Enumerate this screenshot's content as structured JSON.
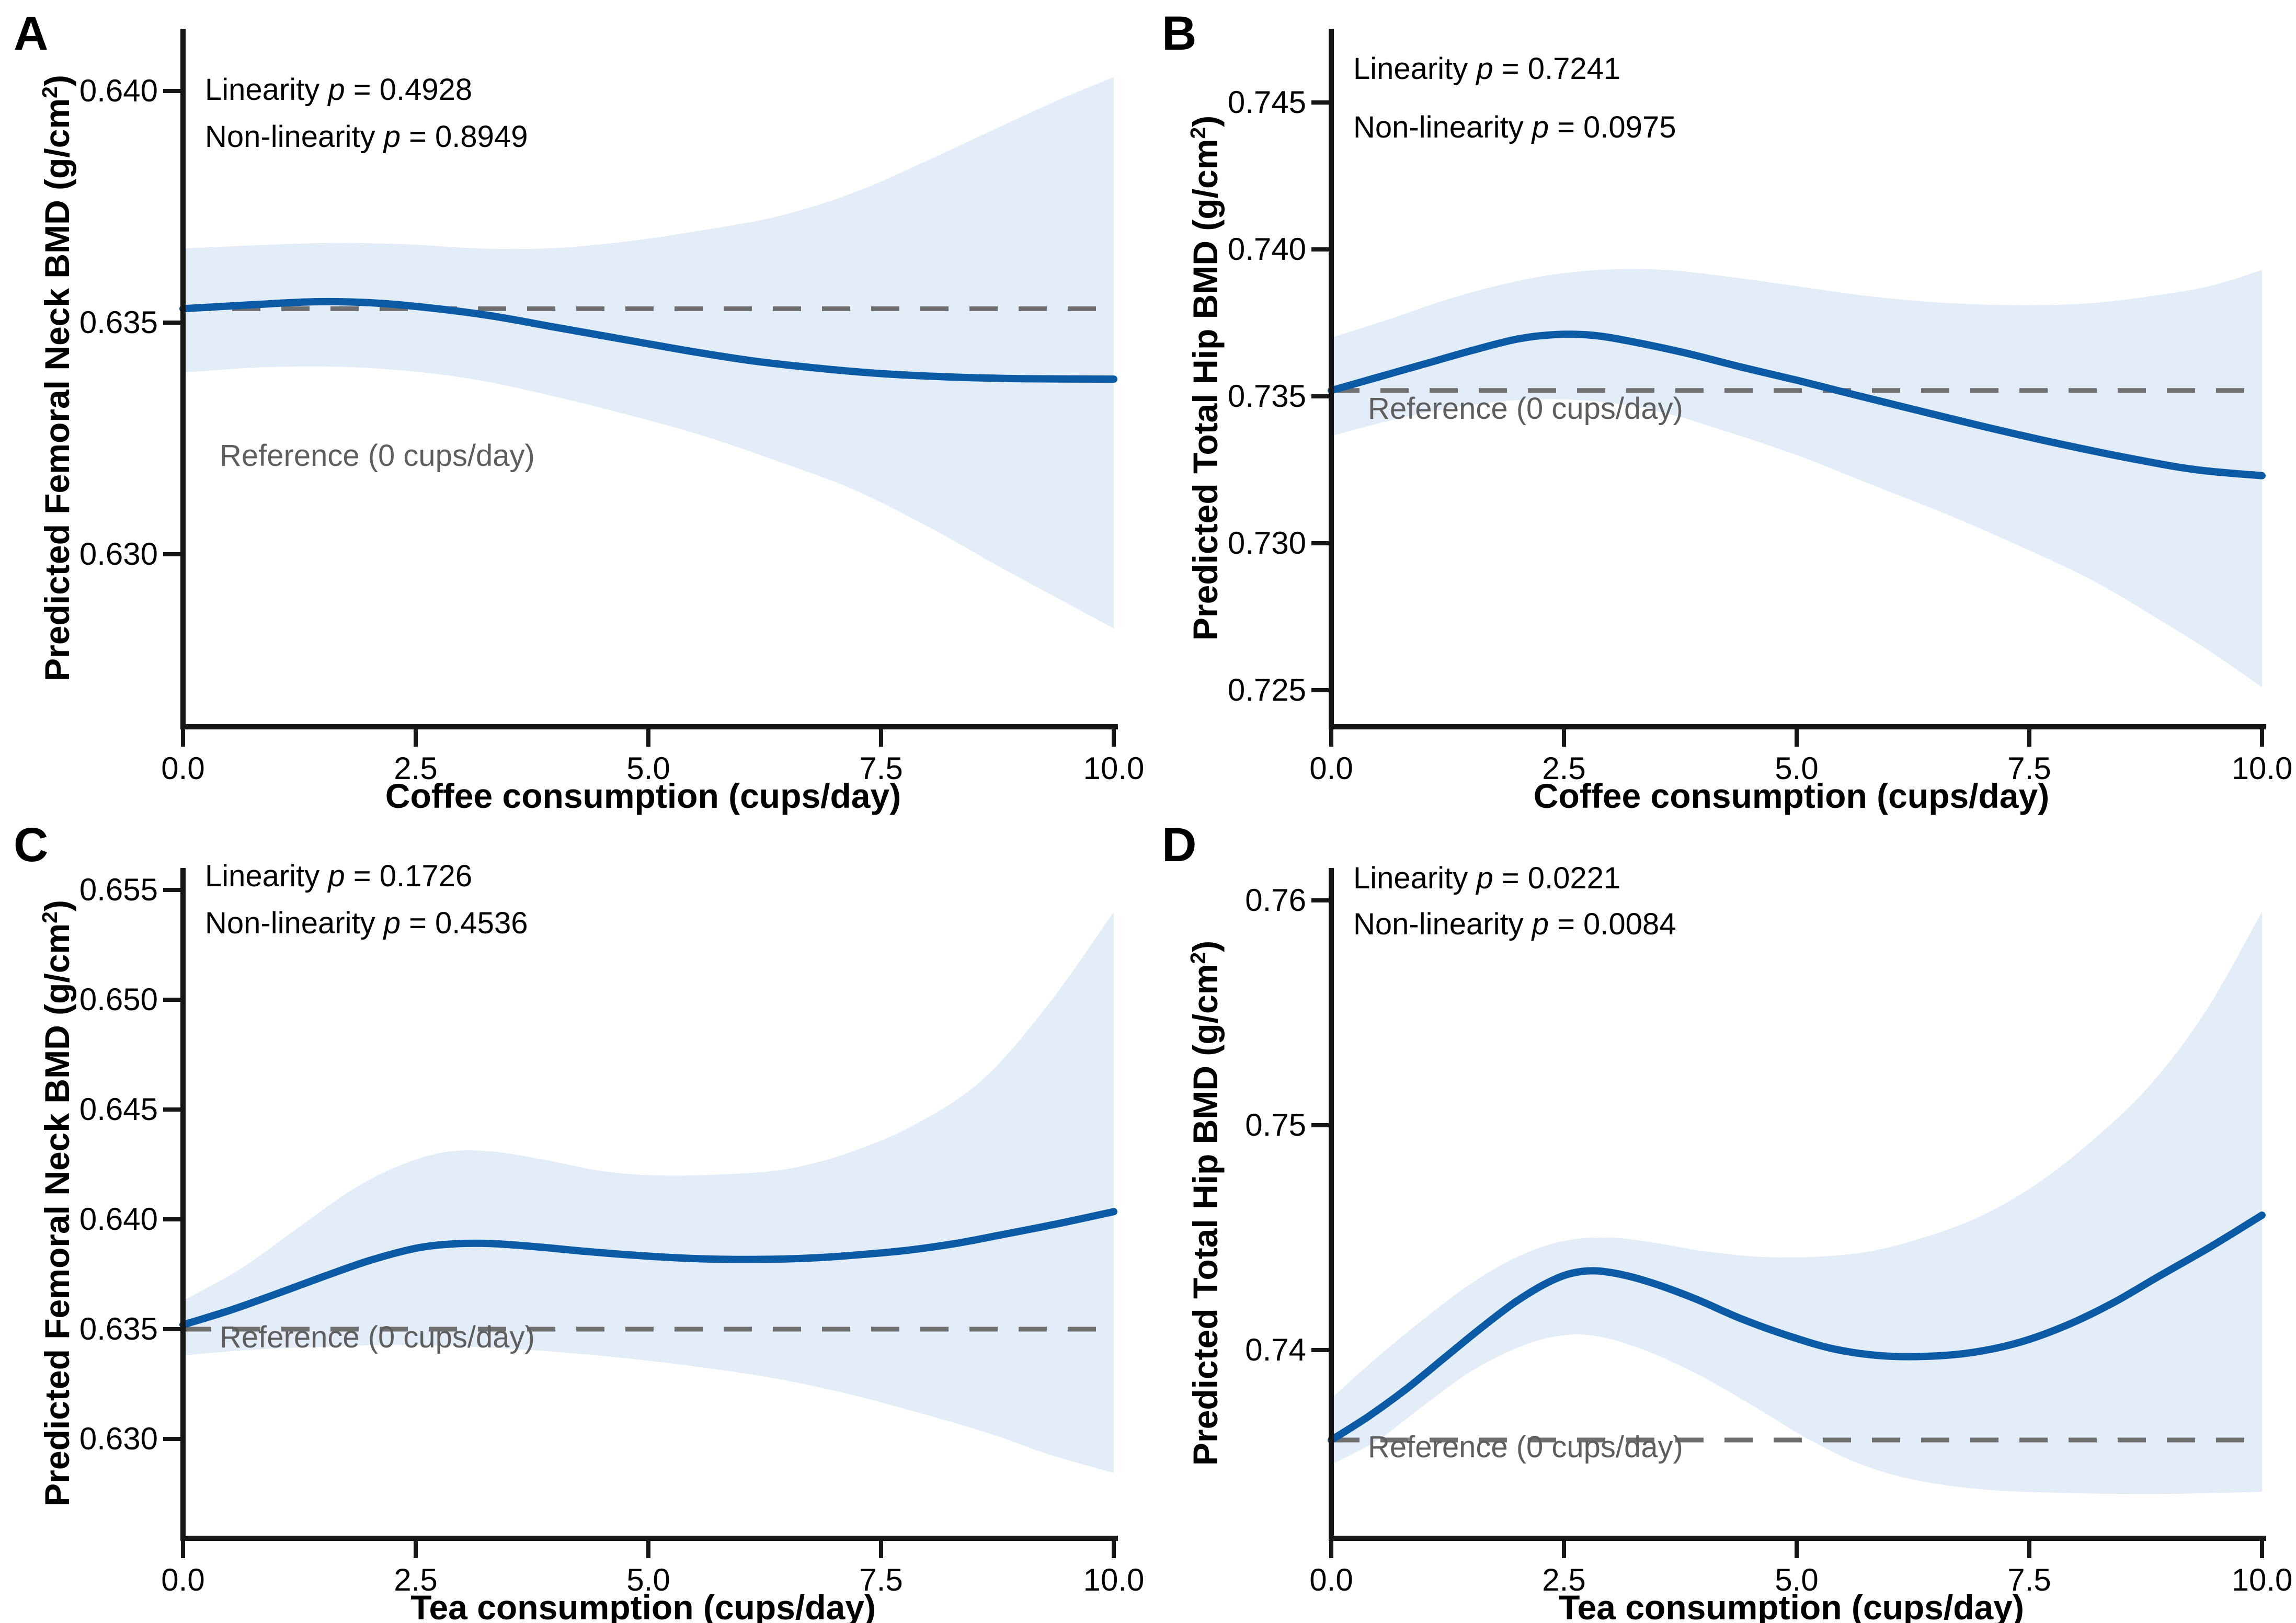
{
  "figure": {
    "background": "#ffffff",
    "colors": {
      "curve": "#0B5AA6",
      "band": "#E2EDF8",
      "reference_line": "#6F6F6F",
      "reference_text": "#5E5E5E",
      "axis": "#161616",
      "text": "#000000"
    }
  },
  "chart_data": [
    {
      "type": "line",
      "letter": "A",
      "y_title": "Predicted Femoral Neck BMD (g/cm²)",
      "x_title": "Coffee consumption (cups/day)",
      "stats": [
        "Linearity p = 0.4928",
        "Non-linearity p = 0.8949"
      ],
      "reference_label": "Reference (0 cups/day)",
      "reference_value": 0.6353,
      "x_range": [
        0,
        10
      ],
      "x_ticks": [
        {
          "v": 0,
          "label": "0.0"
        },
        {
          "v": 2.5,
          "label": "2.5"
        },
        {
          "v": 5,
          "label": "5.0"
        },
        {
          "v": 7.5,
          "label": "7.5"
        },
        {
          "v": 10,
          "label": "10.0"
        }
      ],
      "y_ticks": [
        {
          "v": 0.64,
          "label": "0.640"
        },
        {
          "v": 0.635,
          "label": "0.635"
        },
        {
          "v": 0.63,
          "label": "0.630"
        }
      ],
      "curve": [
        [
          0,
          0.6353
        ],
        [
          0.7,
          0.63538
        ],
        [
          1.4,
          0.63545
        ],
        [
          2,
          0.63543
        ],
        [
          2.6,
          0.63533
        ],
        [
          3.3,
          0.63515
        ],
        [
          4,
          0.6349
        ],
        [
          4.7,
          0.63465
        ],
        [
          5.4,
          0.6344
        ],
        [
          6.1,
          0.63418
        ],
        [
          6.8,
          0.63402
        ],
        [
          7.5,
          0.6339
        ],
        [
          8.2,
          0.63383
        ],
        [
          9,
          0.63379
        ],
        [
          10,
          0.63378
        ]
      ],
      "band_upper": [
        [
          0,
          0.6366
        ],
        [
          0.8,
          0.63667
        ],
        [
          1.6,
          0.63672
        ],
        [
          2.4,
          0.63669
        ],
        [
          3.2,
          0.6366
        ],
        [
          4,
          0.63661
        ],
        [
          4.8,
          0.63676
        ],
        [
          5.6,
          0.637
        ],
        [
          6.4,
          0.6373
        ],
        [
          7.2,
          0.6378
        ],
        [
          8,
          0.6385
        ],
        [
          8.8,
          0.63925
        ],
        [
          9.4,
          0.6398
        ],
        [
          10,
          0.6403
        ]
      ],
      "band_lower": [
        [
          0,
          0.63392
        ],
        [
          0.8,
          0.63403
        ],
        [
          1.6,
          0.63405
        ],
        [
          2.4,
          0.63396
        ],
        [
          3.2,
          0.63375
        ],
        [
          4,
          0.6334
        ],
        [
          4.8,
          0.633
        ],
        [
          5.6,
          0.63255
        ],
        [
          6.4,
          0.632
        ],
        [
          7.2,
          0.6314
        ],
        [
          8,
          0.6306
        ],
        [
          8.8,
          0.6297
        ],
        [
          9.4,
          0.62905
        ],
        [
          10,
          0.6284
        ]
      ]
    },
    {
      "type": "line",
      "letter": "B",
      "y_title": "Predicted Total Hip BMD (g/cm²)",
      "x_title": "Coffee consumption (cups/day)",
      "stats": [
        "Linearity p = 0.7241",
        "Non-linearity p = 0.0975"
      ],
      "reference_label": "Reference (0 cups/day)",
      "reference_value": 0.7352,
      "x_range": [
        0,
        10
      ],
      "x_ticks": [
        {
          "v": 0,
          "label": "0.0"
        },
        {
          "v": 2.5,
          "label": "2.5"
        },
        {
          "v": 5,
          "label": "5.0"
        },
        {
          "v": 7.5,
          "label": "7.5"
        },
        {
          "v": 10,
          "label": "10.0"
        }
      ],
      "y_ticks": [
        {
          "v": 0.745,
          "label": "0.745"
        },
        {
          "v": 0.74,
          "label": "0.740"
        },
        {
          "v": 0.735,
          "label": "0.735"
        },
        {
          "v": 0.73,
          "label": "0.730"
        },
        {
          "v": 0.725,
          "label": "0.725"
        }
      ],
      "curve": [
        [
          0,
          0.7352
        ],
        [
          0.5,
          0.73565
        ],
        [
          1,
          0.7361
        ],
        [
          1.5,
          0.73655
        ],
        [
          2,
          0.73695
        ],
        [
          2.4,
          0.7371
        ],
        [
          2.8,
          0.73708
        ],
        [
          3.2,
          0.73688
        ],
        [
          3.8,
          0.73648
        ],
        [
          4.4,
          0.736
        ],
        [
          5,
          0.73555
        ],
        [
          5.5,
          0.73515
        ],
        [
          6.2,
          0.7346
        ],
        [
          7,
          0.73398
        ],
        [
          7.8,
          0.7334
        ],
        [
          8.6,
          0.73288
        ],
        [
          9.3,
          0.7325
        ],
        [
          10,
          0.7323
        ]
      ],
      "band_upper": [
        [
          0,
          0.737
        ],
        [
          0.6,
          0.7376
        ],
        [
          1.2,
          0.73825
        ],
        [
          1.8,
          0.73878
        ],
        [
          2.4,
          0.73915
        ],
        [
          3,
          0.73932
        ],
        [
          3.6,
          0.7393
        ],
        [
          4.2,
          0.7391
        ],
        [
          5,
          0.73875
        ],
        [
          5.8,
          0.7384
        ],
        [
          6.6,
          0.73818
        ],
        [
          7.4,
          0.7381
        ],
        [
          8.2,
          0.73818
        ],
        [
          9,
          0.7385
        ],
        [
          9.5,
          0.7388
        ],
        [
          10,
          0.7393
        ]
      ],
      "band_lower": [
        [
          0,
          0.73365
        ],
        [
          0.6,
          0.73415
        ],
        [
          1.2,
          0.73455
        ],
        [
          1.8,
          0.73482
        ],
        [
          2.4,
          0.7349
        ],
        [
          3,
          0.73478
        ],
        [
          3.6,
          0.73442
        ],
        [
          4.2,
          0.73385
        ],
        [
          5,
          0.733
        ],
        [
          5.8,
          0.732
        ],
        [
          6.6,
          0.731
        ],
        [
          7.4,
          0.7299
        ],
        [
          8.2,
          0.7287
        ],
        [
          9,
          0.7272
        ],
        [
          9.5,
          0.7262
        ],
        [
          10,
          0.7251
        ]
      ]
    },
    {
      "type": "line",
      "letter": "C",
      "y_title": "Predicted Femoral Neck BMD (g/cm²)",
      "x_title": "Tea consumption (cups/day)",
      "stats": [
        "Linearity p = 0.1726",
        "Non-linearity p = 0.4536"
      ],
      "reference_label": "Reference (0 cups/day)",
      "reference_value": 0.635,
      "x_range": [
        0,
        10
      ],
      "x_ticks": [
        {
          "v": 0,
          "label": "0.0"
        },
        {
          "v": 2.5,
          "label": "2.5"
        },
        {
          "v": 5,
          "label": "5.0"
        },
        {
          "v": 7.5,
          "label": "7.5"
        },
        {
          "v": 10,
          "label": "10.0"
        }
      ],
      "y_ticks": [
        {
          "v": 0.655,
          "label": "0.655"
        },
        {
          "v": 0.65,
          "label": "0.650"
        },
        {
          "v": 0.645,
          "label": "0.645"
        },
        {
          "v": 0.64,
          "label": "0.640"
        },
        {
          "v": 0.635,
          "label": "0.635"
        },
        {
          "v": 0.63,
          "label": "0.630"
        }
      ],
      "curve": [
        [
          0,
          0.6352
        ],
        [
          0.5,
          0.63585
        ],
        [
          1,
          0.6366
        ],
        [
          1.5,
          0.63738
        ],
        [
          2,
          0.63812
        ],
        [
          2.5,
          0.63868
        ],
        [
          2.9,
          0.63888
        ],
        [
          3.3,
          0.6389
        ],
        [
          3.8,
          0.63875
        ],
        [
          4.3,
          0.63855
        ],
        [
          4.8,
          0.63838
        ],
        [
          5.3,
          0.63825
        ],
        [
          5.8,
          0.63818
        ],
        [
          6.3,
          0.63818
        ],
        [
          6.8,
          0.63825
        ],
        [
          7.3,
          0.6384
        ],
        [
          7.8,
          0.6386
        ],
        [
          8.3,
          0.6389
        ],
        [
          8.8,
          0.6393
        ],
        [
          9.4,
          0.6398
        ],
        [
          10,
          0.64035
        ]
      ],
      "band_upper": [
        [
          0,
          0.6363
        ],
        [
          0.6,
          0.6377
        ],
        [
          1.2,
          0.6395
        ],
        [
          1.8,
          0.6413
        ],
        [
          2.3,
          0.6424
        ],
        [
          2.8,
          0.64305
        ],
        [
          3.3,
          0.6431
        ],
        [
          3.9,
          0.6427
        ],
        [
          4.5,
          0.6422
        ],
        [
          5.1,
          0.642
        ],
        [
          5.8,
          0.64205
        ],
        [
          6.5,
          0.6423
        ],
        [
          7.2,
          0.6431
        ],
        [
          7.9,
          0.6444
        ],
        [
          8.6,
          0.6464
        ],
        [
          9.3,
          0.6498
        ],
        [
          10,
          0.654
        ]
      ],
      "band_lower": [
        [
          0,
          0.6338
        ],
        [
          0.7,
          0.63405
        ],
        [
          1.5,
          0.6342
        ],
        [
          2.3,
          0.63428
        ],
        [
          3.1,
          0.6342
        ],
        [
          3.9,
          0.634
        ],
        [
          4.7,
          0.6337
        ],
        [
          5.5,
          0.6333
        ],
        [
          6.3,
          0.6328
        ],
        [
          7.1,
          0.6321
        ],
        [
          7.9,
          0.6312
        ],
        [
          8.7,
          0.6302
        ],
        [
          9.3,
          0.6293
        ],
        [
          10,
          0.62845
        ]
      ]
    },
    {
      "type": "line",
      "letter": "D",
      "y_title": "Predicted Total Hip BMD (g/cm²)",
      "x_title": "Tea consumption (cups/day)",
      "stats": [
        "Linearity p = 0.0221",
        "Non-linearity p = 0.0084"
      ],
      "reference_label": "Reference (0 cups/day)",
      "reference_value": 0.736,
      "x_range": [
        0,
        10
      ],
      "x_ticks": [
        {
          "v": 0,
          "label": "0.0"
        },
        {
          "v": 2.5,
          "label": "2.5"
        },
        {
          "v": 5,
          "label": "5.0"
        },
        {
          "v": 7.5,
          "label": "7.5"
        },
        {
          "v": 10,
          "label": "10.0"
        }
      ],
      "y_ticks": [
        {
          "v": 0.76,
          "label": "0.76"
        },
        {
          "v": 0.75,
          "label": "0.75"
        },
        {
          "v": 0.74,
          "label": "0.74"
        }
      ],
      "curve": [
        [
          0,
          0.736
        ],
        [
          0.4,
          0.73705
        ],
        [
          0.8,
          0.73825
        ],
        [
          1.2,
          0.7396
        ],
        [
          1.6,
          0.74095
        ],
        [
          2,
          0.7422
        ],
        [
          2.4,
          0.74315
        ],
        [
          2.7,
          0.7435
        ],
        [
          3,
          0.74345
        ],
        [
          3.4,
          0.74305
        ],
        [
          3.9,
          0.7423
        ],
        [
          4.4,
          0.7414
        ],
        [
          4.9,
          0.74065
        ],
        [
          5.4,
          0.74005
        ],
        [
          5.9,
          0.73975
        ],
        [
          6.4,
          0.73972
        ],
        [
          6.9,
          0.7399
        ],
        [
          7.4,
          0.74035
        ],
        [
          7.9,
          0.7411
        ],
        [
          8.4,
          0.7421
        ],
        [
          8.9,
          0.7433
        ],
        [
          9.45,
          0.7446
        ],
        [
          10,
          0.746
        ]
      ],
      "band_upper": [
        [
          0,
          0.73785
        ],
        [
          0.5,
          0.7397
        ],
        [
          1,
          0.7414
        ],
        [
          1.5,
          0.74295
        ],
        [
          2,
          0.74415
        ],
        [
          2.5,
          0.74485
        ],
        [
          3,
          0.745
        ],
        [
          3.5,
          0.74475
        ],
        [
          4,
          0.7444
        ],
        [
          4.6,
          0.74415
        ],
        [
          5.2,
          0.74415
        ],
        [
          5.8,
          0.7444
        ],
        [
          6.4,
          0.74505
        ],
        [
          7,
          0.746
        ],
        [
          7.6,
          0.74745
        ],
        [
          8.2,
          0.7494
        ],
        [
          8.8,
          0.7518
        ],
        [
          9.4,
          0.7551
        ],
        [
          10,
          0.7595
        ]
      ],
      "band_lower": [
        [
          0,
          0.7349
        ],
        [
          0.5,
          0.736
        ],
        [
          1,
          0.73755
        ],
        [
          1.5,
          0.73905
        ],
        [
          2,
          0.7401
        ],
        [
          2.4,
          0.7406
        ],
        [
          2.8,
          0.74065
        ],
        [
          3.3,
          0.7401
        ],
        [
          3.9,
          0.739
        ],
        [
          4.5,
          0.7376
        ],
        [
          5.1,
          0.7361
        ],
        [
          5.7,
          0.7349
        ],
        [
          6.3,
          0.7342
        ],
        [
          7,
          0.7338
        ],
        [
          7.8,
          0.73365
        ],
        [
          8.6,
          0.7336
        ],
        [
          9.3,
          0.73362
        ],
        [
          10,
          0.7337
        ]
      ]
    }
  ]
}
